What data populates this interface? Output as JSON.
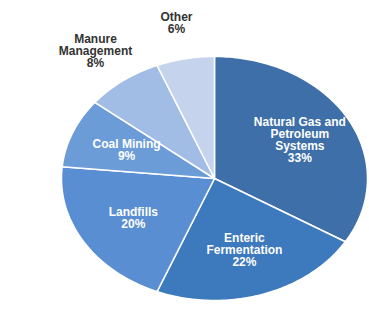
{
  "chart_data": {
    "type": "pie",
    "categories": [
      "Natural Gas and Petroleum Systems",
      "Enteric Fermentation",
      "Landfills",
      "Coal Mining",
      "Manure Management",
      "Other"
    ],
    "values": [
      33,
      22,
      20,
      9,
      8,
      6
    ],
    "value_labels": [
      "33%",
      "22%",
      "20%",
      "9%",
      "8%",
      "6%"
    ],
    "colors": [
      "#3e6fa8",
      "#3c79bd",
      "#5a8ed2",
      "#6c9cd7",
      "#a2bde5",
      "#c5d4ec"
    ],
    "data_labels": true
  }
}
